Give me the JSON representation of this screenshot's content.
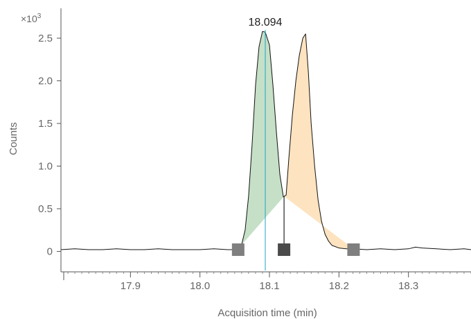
{
  "chart_data": {
    "type": "line",
    "xlabel": "Acquisition time (min)",
    "ylabel": "Counts",
    "y_multiplier_base": "×10",
    "y_multiplier_exp": "3",
    "xlim": [
      17.8,
      18.39
    ],
    "ylim": [
      -0.24,
      2.85
    ],
    "x_ticks": [
      17.9,
      18.0,
      18.1,
      18.2,
      18.3
    ],
    "x_tick_labels": [
      "17.9",
      "18.0",
      "18.1",
      "18.2",
      "18.3"
    ],
    "y_ticks": [
      0,
      0.5,
      1.0,
      1.5,
      2.0,
      2.5
    ],
    "y_tick_labels": [
      "0",
      "0.5",
      "1.0",
      "1.5",
      "2.0",
      "2.5"
    ],
    "grid": false,
    "series": [
      {
        "x": [
          17.8,
          17.82,
          17.84,
          17.86,
          17.88,
          17.9,
          17.92,
          17.94,
          17.96,
          17.98,
          18.0,
          18.02,
          18.04,
          18.05,
          18.055,
          18.06,
          18.065,
          18.07,
          18.075,
          18.08,
          18.085,
          18.09,
          18.094,
          18.1,
          18.105,
          18.11,
          18.115,
          18.12,
          18.124,
          18.128,
          18.133,
          18.138,
          18.143,
          18.148,
          18.152,
          18.156,
          18.16,
          18.165,
          18.17,
          18.175,
          18.18,
          18.185,
          18.19,
          18.2,
          18.21,
          18.22,
          18.24,
          18.26,
          18.28,
          18.3,
          18.31,
          18.32,
          18.34,
          18.36,
          18.38,
          18.39
        ],
        "y": [
          0.02,
          0.03,
          0.02,
          0.02,
          0.03,
          0.02,
          0.02,
          0.03,
          0.02,
          0.02,
          0.02,
          0.03,
          0.02,
          0.02,
          0.03,
          0.08,
          0.25,
          0.65,
          1.25,
          1.95,
          2.4,
          2.58,
          2.57,
          2.42,
          1.95,
          1.4,
          0.9,
          0.64,
          0.66,
          1.1,
          1.6,
          2.0,
          2.3,
          2.5,
          2.55,
          2.1,
          1.5,
          1.0,
          0.6,
          0.35,
          0.2,
          0.12,
          0.07,
          0.04,
          0.03,
          0.03,
          0.02,
          0.03,
          0.02,
          0.03,
          0.05,
          0.04,
          0.03,
          0.02,
          0.03,
          0.02
        ]
      }
    ],
    "peaks": [
      {
        "start": 18.055,
        "end": 18.121,
        "color": "#c5e0c7",
        "label": "18.094"
      },
      {
        "start": 18.121,
        "end": 18.221,
        "color": "#fde3bf",
        "label": ""
      }
    ],
    "apex_line": {
      "x": 18.094,
      "color": "#1aa3c8"
    },
    "markers": [
      {
        "x": 18.055,
        "y": 0.02,
        "color": "#7f7f7f"
      },
      {
        "x": 18.121,
        "y": 0.02,
        "color": "#4a4a4a"
      },
      {
        "x": 18.221,
        "y": 0.02,
        "color": "#7f7f7f"
      }
    ],
    "peak_label": {
      "x": 18.094,
      "y": 2.58,
      "text": "18.094"
    }
  }
}
